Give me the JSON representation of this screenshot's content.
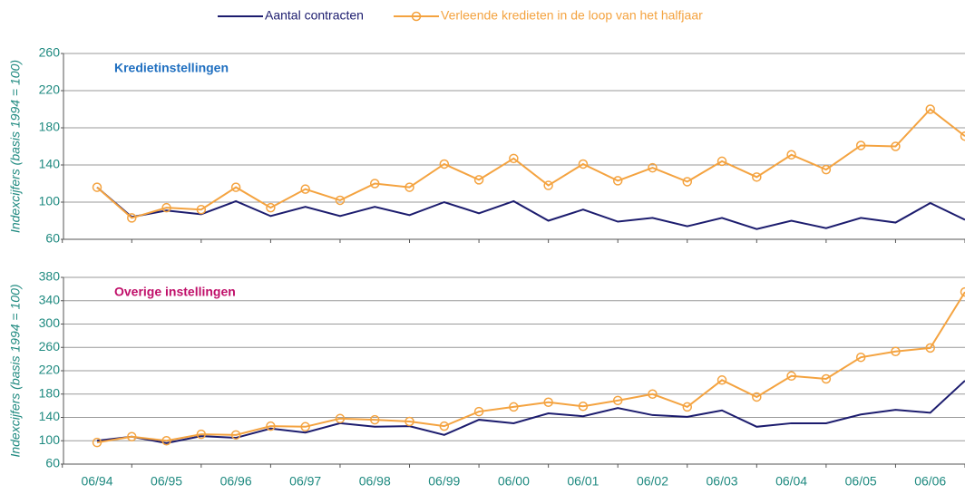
{
  "chart_data": [
    {
      "type": "line",
      "title": "Kredietinstellingen",
      "title_color": "#1f6fc0",
      "ylabel": "Indexcijfers (basis 1994 = 100)",
      "ylim": [
        60,
        260
      ],
      "yticks": [
        60,
        100,
        140,
        180,
        220,
        260
      ],
      "grid": true,
      "legend": "top",
      "series": [
        {
          "name": "Aantal contracten",
          "color": "#1c1c6e",
          "marker": false,
          "values": [
            116,
            84,
            91,
            87,
            101,
            85,
            95,
            85,
            95,
            86,
            100,
            88,
            101,
            80,
            92,
            79,
            83,
            74,
            83,
            71,
            80,
            72,
            83,
            78,
            99,
            81
          ]
        },
        {
          "name": "Verleende kredieten in de loop van het halfjaar",
          "color": "#f4a340",
          "marker": true,
          "values": [
            116,
            83,
            94,
            92,
            116,
            94,
            114,
            102,
            120,
            116,
            141,
            124,
            147,
            118,
            141,
            123,
            137,
            122,
            144,
            127,
            151,
            135,
            161,
            160,
            200,
            171
          ]
        }
      ]
    },
    {
      "type": "line",
      "title": "Overige instellingen",
      "title_color": "#c0106a",
      "ylabel": "Indexcijfers (basis 1994 = 100)",
      "ylim": [
        60,
        380
      ],
      "yticks": [
        60,
        100,
        140,
        180,
        220,
        260,
        300,
        340,
        380
      ],
      "grid": true,
      "categories": [
        "06/94",
        null,
        "06/95",
        null,
        "06/96",
        null,
        "06/97",
        null,
        "06/98",
        null,
        "06/99",
        null,
        "06/00",
        null,
        "06/01",
        null,
        "06/02",
        null,
        "06/03",
        null,
        "06/04",
        null,
        "06/05",
        null,
        "06/06",
        null
      ],
      "series": [
        {
          "color": "#1c1c6e",
          "marker": false,
          "values": [
            100,
            107,
            96,
            108,
            105,
            121,
            114,
            130,
            124,
            125,
            110,
            136,
            130,
            147,
            142,
            156,
            144,
            141,
            152,
            124,
            130,
            130,
            145,
            153,
            148,
            203
          ]
        },
        {
          "color": "#f4a340",
          "marker": true,
          "values": [
            97,
            107,
            100,
            111,
            110,
            125,
            124,
            138,
            136,
            133,
            125,
            150,
            158,
            166,
            159,
            169,
            180,
            158,
            204,
            175,
            211,
            206,
            243,
            253,
            259,
            355
          ]
        }
      ]
    }
  ]
}
